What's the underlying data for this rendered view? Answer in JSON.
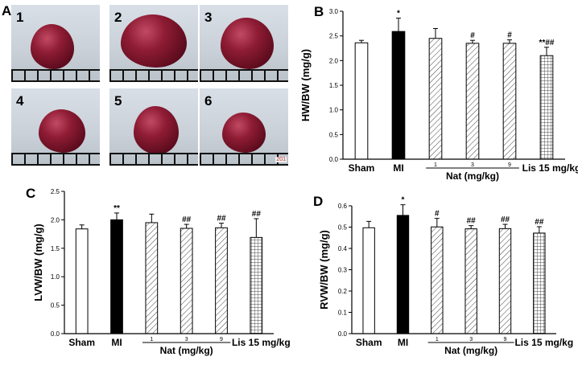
{
  "panel_a": {
    "letter": "A",
    "photos": [
      {
        "label": "1"
      },
      {
        "label": "2"
      },
      {
        "label": "3"
      },
      {
        "label": "4"
      },
      {
        "label": "5"
      },
      {
        "label": "6",
        "stamp": "201"
      }
    ]
  },
  "chart_data": [
    {
      "letter": "B",
      "type": "bar",
      "ylabel": "HW/BW (mg/g)",
      "ylim": [
        0,
        3.0
      ],
      "yticks": [
        "0.0",
        "0.5",
        "1.0",
        "1.5",
        "2.0",
        "2.5",
        "3.0"
      ],
      "categories": [
        "Sham",
        "MI",
        "1",
        "3",
        "9",
        "Lis 15 mg/kg"
      ],
      "group_label": "Nat (mg/kg)",
      "values": [
        2.36,
        2.59,
        2.45,
        2.35,
        2.35,
        2.1
      ],
      "errors": [
        0.05,
        0.27,
        0.2,
        0.06,
        0.07,
        0.17
      ],
      "annotations": [
        "",
        "*",
        "",
        "#",
        "#",
        "**##"
      ],
      "fills": [
        "white",
        "black",
        "hatch",
        "hatch",
        "hatch",
        "grid"
      ]
    },
    {
      "letter": "C",
      "type": "bar",
      "ylabel": "LVW/BW (mg/g)",
      "ylim": [
        0,
        2.5
      ],
      "yticks": [
        "0.0",
        "0.5",
        "1.0",
        "1.5",
        "2.0",
        "2.5"
      ],
      "categories": [
        "Sham",
        "MI",
        "1",
        "3",
        "9",
        "Lis 15 mg/kg"
      ],
      "group_label": "Nat (mg/kg)",
      "values": [
        1.84,
        2.0,
        1.95,
        1.85,
        1.86,
        1.69
      ],
      "errors": [
        0.07,
        0.12,
        0.15,
        0.07,
        0.08,
        0.33
      ],
      "annotations": [
        "",
        "**",
        "",
        "##",
        "##",
        "##"
      ],
      "fills": [
        "white",
        "black",
        "hatch",
        "hatch",
        "hatch",
        "grid"
      ]
    },
    {
      "letter": "D",
      "type": "bar",
      "ylabel": "RVW/BW (mg/g)",
      "ylim": [
        0,
        0.6
      ],
      "yticks": [
        "0.0",
        "0.1",
        "0.2",
        "0.3",
        "0.4",
        "0.5",
        "0.6"
      ],
      "categories": [
        "Sham",
        "MI",
        "1",
        "3",
        "9",
        "Lis 15 mg/kg"
      ],
      "group_label": "Nat (mg/kg)",
      "values": [
        0.497,
        0.555,
        0.501,
        0.492,
        0.493,
        0.472
      ],
      "errors": [
        0.03,
        0.05,
        0.04,
        0.015,
        0.02,
        0.03
      ],
      "annotations": [
        "",
        "*",
        "#",
        "##",
        "##",
        "##"
      ],
      "fills": [
        "white",
        "black",
        "hatch",
        "hatch",
        "hatch",
        "grid"
      ]
    }
  ]
}
